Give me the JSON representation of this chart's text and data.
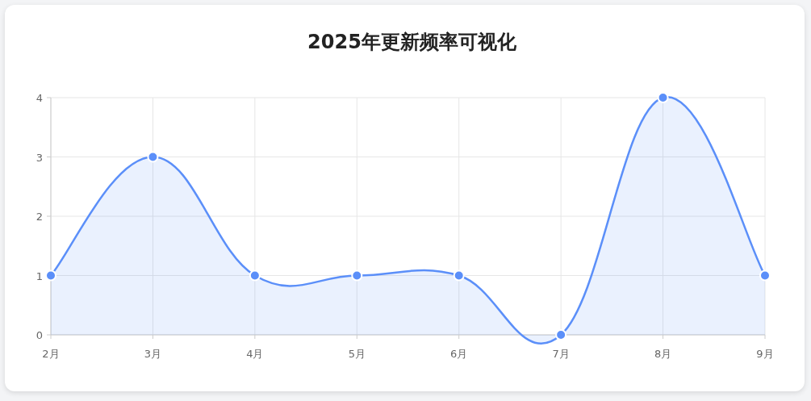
{
  "chart_data": {
    "type": "area",
    "title": "2025年更新频率可视化",
    "categories": [
      "2月",
      "3月",
      "4月",
      "5月",
      "6月",
      "7月",
      "8月",
      "9月"
    ],
    "values": [
      1,
      3,
      1,
      1,
      1,
      0,
      4,
      1
    ],
    "color": "#5b8ff9",
    "ylim": [
      0,
      4
    ],
    "yticks": [
      0,
      1,
      2,
      3,
      4
    ],
    "grid": true,
    "marker": "circle",
    "line_style": "solid"
  }
}
